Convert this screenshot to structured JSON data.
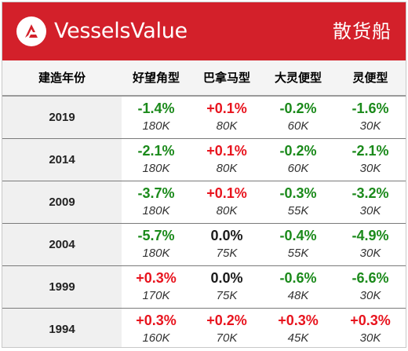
{
  "header": {
    "brand": "VesselsValue",
    "category": "散货船",
    "colors": {
      "header_bg": "#d3202a",
      "positive": "#e8141e",
      "negative": "#1b8a1b",
      "neutral": "#1a1a1a"
    },
    "logo_icon": "vesselsvalue-logo-icon"
  },
  "table": {
    "columns": [
      "建造年份",
      "好望角型",
      "巴拿马型",
      "大灵便型",
      "灵便型"
    ],
    "rows": [
      {
        "year": "2019",
        "cells": [
          {
            "change": "-1.4%",
            "size": "180K"
          },
          {
            "change": "+0.1%",
            "size": "80K"
          },
          {
            "change": "-0.2%",
            "size": "60K"
          },
          {
            "change": "-1.6%",
            "size": "30K"
          }
        ]
      },
      {
        "year": "2014",
        "cells": [
          {
            "change": "-2.1%",
            "size": "180K"
          },
          {
            "change": "+0.1%",
            "size": "80K"
          },
          {
            "change": "-0.2%",
            "size": "60K"
          },
          {
            "change": "-2.1%",
            "size": "30K"
          }
        ]
      },
      {
        "year": "2009",
        "cells": [
          {
            "change": "-3.7%",
            "size": "180K"
          },
          {
            "change": "+0.1%",
            "size": "80K"
          },
          {
            "change": "-0.3%",
            "size": "55K"
          },
          {
            "change": "-3.2%",
            "size": "30K"
          }
        ]
      },
      {
        "year": "2004",
        "cells": [
          {
            "change": "-5.7%",
            "size": "180K"
          },
          {
            "change": "0.0%",
            "size": "75K"
          },
          {
            "change": "-0.4%",
            "size": "55K"
          },
          {
            "change": "-4.9%",
            "size": "30K"
          }
        ]
      },
      {
        "year": "1999",
        "cells": [
          {
            "change": "+0.3%",
            "size": "170K"
          },
          {
            "change": "0.0%",
            "size": "75K"
          },
          {
            "change": "-0.6%",
            "size": "48K"
          },
          {
            "change": "-6.6%",
            "size": "30K"
          }
        ]
      },
      {
        "year": "1994",
        "cells": [
          {
            "change": "+0.3%",
            "size": "160K"
          },
          {
            "change": "+0.2%",
            "size": "70K"
          },
          {
            "change": "+0.3%",
            "size": "45K"
          },
          {
            "change": "+0.3%",
            "size": "30K"
          }
        ]
      }
    ]
  }
}
